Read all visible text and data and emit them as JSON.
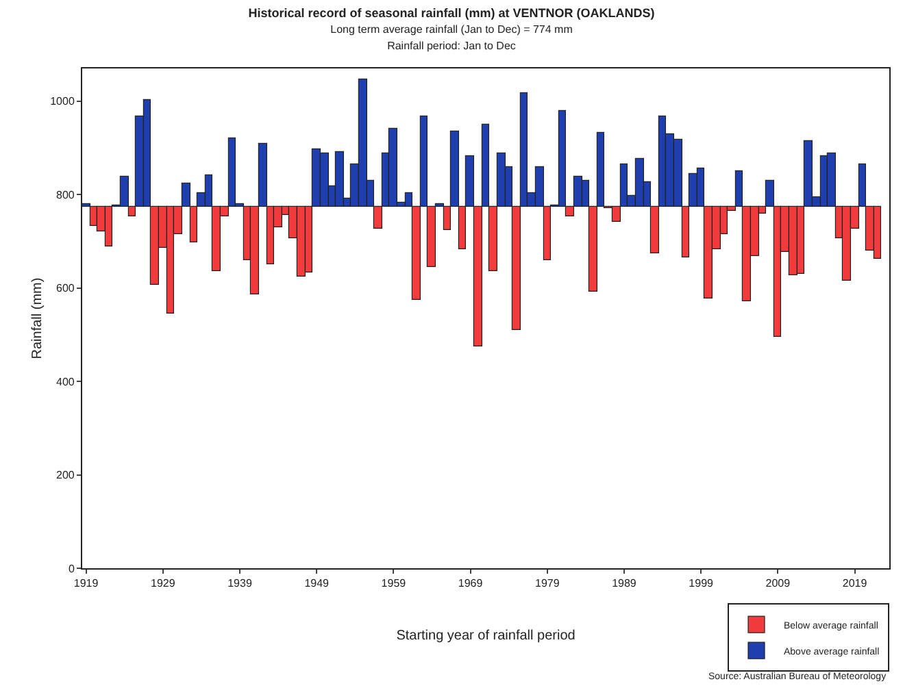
{
  "chart_data": {
    "type": "bar",
    "title": "Historical record of seasonal rainfall (mm) at VENTNOR (OAKLANDS)",
    "subtitle": "Long term average rainfall (Jan to Dec) = 774 mm\nRainfall period: Jan to Dec",
    "xlabel": "Starting year of rainfall period",
    "ylabel": "Rainfall (mm)",
    "annotations": [
      "Source: Australian Bureau of Meteorology"
    ],
    "x": [
      1919,
      1920,
      1921,
      1922,
      1923,
      1924,
      1925,
      1926,
      1927,
      1928,
      1929,
      1930,
      1931,
      1932,
      1933,
      1934,
      1935,
      1936,
      1937,
      1938,
      1939,
      1940,
      1941,
      1942,
      1943,
      1944,
      1945,
      1946,
      1947,
      1948,
      1949,
      1950,
      1951,
      1952,
      1953,
      1954,
      1955,
      1956,
      1957,
      1958,
      1959,
      1960,
      1961,
      1962,
      1963,
      1964,
      1965,
      1966,
      1967,
      1968,
      1969,
      1970,
      1971,
      1972,
      1973,
      1974,
      1975,
      1976,
      1977,
      1978,
      1979,
      1980,
      1981,
      1982,
      1983,
      1984,
      1985,
      1986,
      1987,
      1988,
      1989,
      1990,
      1991,
      1992,
      1993,
      1994,
      1995,
      1996,
      1997,
      1998,
      1999,
      2000,
      2001,
      2002,
      2003,
      2004,
      2005,
      2006,
      2007,
      2008,
      2009,
      2010,
      2011,
      2012,
      2013,
      2014,
      2015,
      2016,
      2017,
      2018,
      2019,
      2020,
      2021,
      2022
    ],
    "series": [
      {
        "name": "Below average rainfall",
        "color": "#f03c3c",
        "base": [
          null,
          774,
          774,
          774,
          null,
          null,
          774,
          null,
          null,
          774,
          774,
          774,
          774,
          null,
          774,
          null,
          null,
          774,
          774,
          null,
          null,
          774,
          774,
          null,
          774,
          774,
          774,
          774,
          774,
          774,
          null,
          null,
          null,
          null,
          null,
          null,
          null,
          null,
          774,
          null,
          null,
          null,
          null,
          774,
          null,
          774,
          null,
          774,
          null,
          774,
          null,
          774,
          null,
          774,
          null,
          null,
          774,
          null,
          null,
          null,
          774,
          null,
          null,
          774,
          null,
          null,
          774,
          null,
          774,
          774,
          null,
          null,
          null,
          null,
          774,
          null,
          null,
          null,
          774,
          null,
          null,
          774,
          774,
          774,
          774,
          null,
          774,
          774,
          774,
          null,
          774,
          774,
          774,
          774,
          null,
          null,
          null,
          null,
          774,
          774,
          774,
          null,
          774,
          774
        ],
        "values": [
          null,
          -40,
          -52,
          -85,
          null,
          null,
          -22,
          null,
          null,
          -168,
          -88,
          -230,
          -59,
          null,
          -75,
          null,
          null,
          -139,
          -20,
          null,
          null,
          -113,
          -188,
          null,
          -122,
          -43,
          -18,
          -68,
          -149,
          -142,
          null,
          null,
          null,
          null,
          null,
          null,
          null,
          null,
          -46,
          null,
          null,
          null,
          null,
          -199,
          null,
          -129,
          null,
          -50,
          null,
          -92,
          null,
          -298,
          null,
          -139,
          null,
          null,
          -265,
          null,
          null,
          null,
          -114,
          null,
          null,
          -22,
          null,
          null,
          -181,
          null,
          -4,
          -33,
          null,
          null,
          null,
          null,
          -100,
          null,
          null,
          null,
          -108,
          null,
          null,
          -196,
          -90,
          -59,
          -10,
          null,
          -201,
          -107,
          -16,
          null,
          -278,
          -98,
          -146,
          -144,
          null,
          null,
          null,
          null,
          -68,
          -159,
          -48,
          null,
          -94,
          -111
        ]
      },
      {
        "name": "Above average rainfall",
        "color": "#1f3fae",
        "base": [
          774,
          null,
          null,
          null,
          774,
          774,
          null,
          774,
          774,
          null,
          null,
          null,
          null,
          774,
          null,
          774,
          774,
          null,
          null,
          774,
          774,
          null,
          null,
          774,
          null,
          null,
          null,
          null,
          null,
          null,
          774,
          774,
          774,
          774,
          774,
          774,
          774,
          774,
          null,
          774,
          774,
          774,
          774,
          null,
          774,
          null,
          774,
          null,
          774,
          null,
          774,
          null,
          774,
          null,
          774,
          774,
          null,
          774,
          774,
          774,
          null,
          774,
          774,
          null,
          774,
          774,
          null,
          774,
          null,
          null,
          774,
          774,
          774,
          774,
          null,
          774,
          774,
          774,
          null,
          774,
          774,
          null,
          null,
          null,
          null,
          774,
          null,
          null,
          null,
          774,
          null,
          null,
          null,
          null,
          774,
          774,
          774,
          774,
          null,
          null,
          null,
          774,
          null,
          null
        ],
        "values": [
          7,
          null,
          null,
          null,
          2,
          65,
          null,
          192,
          230,
          null,
          null,
          null,
          null,
          50,
          null,
          30,
          67,
          null,
          null,
          146,
          5,
          null,
          null,
          135,
          null,
          null,
          null,
          null,
          null,
          null,
          124,
          113,
          43,
          118,
          17,
          91,
          274,
          57,
          null,
          114,
          167,
          10,
          30,
          null,
          192,
          null,
          5,
          null,
          161,
          null,
          109,
          null,
          176,
          null,
          115,
          84,
          null,
          244,
          28,
          85,
          null,
          4,
          204,
          null,
          65,
          55,
          null,
          157,
          null,
          null,
          92,
          22,
          104,
          54,
          null,
          194,
          156,
          143,
          null,
          69,
          81,
          null,
          null,
          null,
          null,
          76,
          null,
          null,
          null,
          57,
          null,
          null,
          null,
          null,
          140,
          21,
          107,
          114,
          null,
          null,
          null,
          90,
          null,
          null
        ]
      }
    ],
    "xlim": [
      1918.5,
      2023.5
    ],
    "xticks": [
      1919,
      1929,
      1939,
      1949,
      1959,
      1969,
      1979,
      1989,
      1999,
      2009,
      2019
    ],
    "ylim": [
      0,
      1070
    ],
    "yticks": [
      0,
      200,
      400,
      600,
      800,
      1000
    ],
    "grid": false,
    "legend": "bottom right"
  }
}
